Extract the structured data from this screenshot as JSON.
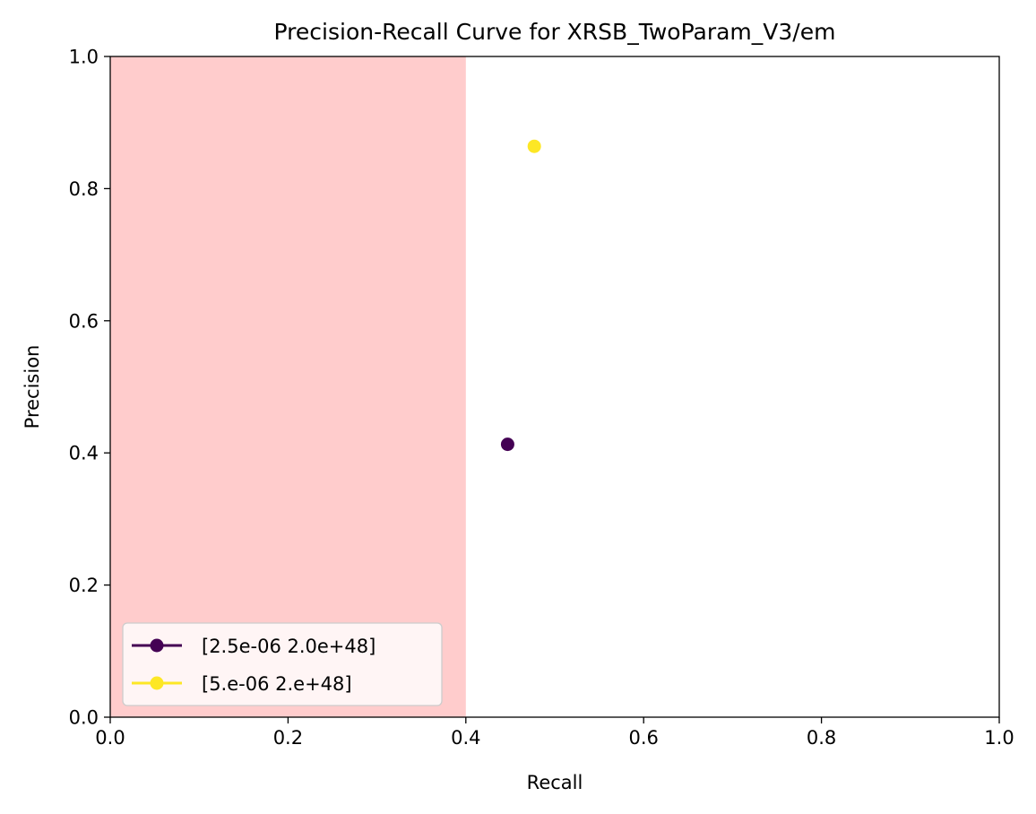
{
  "chart_data": {
    "type": "scatter",
    "title": "Precision-Recall Curve for XRSB_TwoParam_V3/em",
    "xlabel": "Recall",
    "ylabel": "Precision",
    "xlim": [
      0.0,
      1.0
    ],
    "ylim": [
      0.0,
      1.0
    ],
    "xticks": [
      "0.0",
      "0.2",
      "0.4",
      "0.6",
      "0.8",
      "1.0"
    ],
    "yticks": [
      "0.0",
      "0.2",
      "0.4",
      "0.6",
      "0.8",
      "1.0"
    ],
    "grid": false,
    "legend_position": "lower-left",
    "shaded_region": {
      "x_start": 0.0,
      "x_end": 0.4,
      "color": "#ffcccc"
    },
    "series": [
      {
        "name": "[2.5e-06 2.0e+48]",
        "color": "#440154",
        "points": [
          {
            "x": 0.447,
            "y": 0.413
          }
        ]
      },
      {
        "name": "[5.e-06 2.e+48]",
        "color": "#fde725",
        "points": [
          {
            "x": 0.477,
            "y": 0.864
          }
        ]
      }
    ]
  }
}
